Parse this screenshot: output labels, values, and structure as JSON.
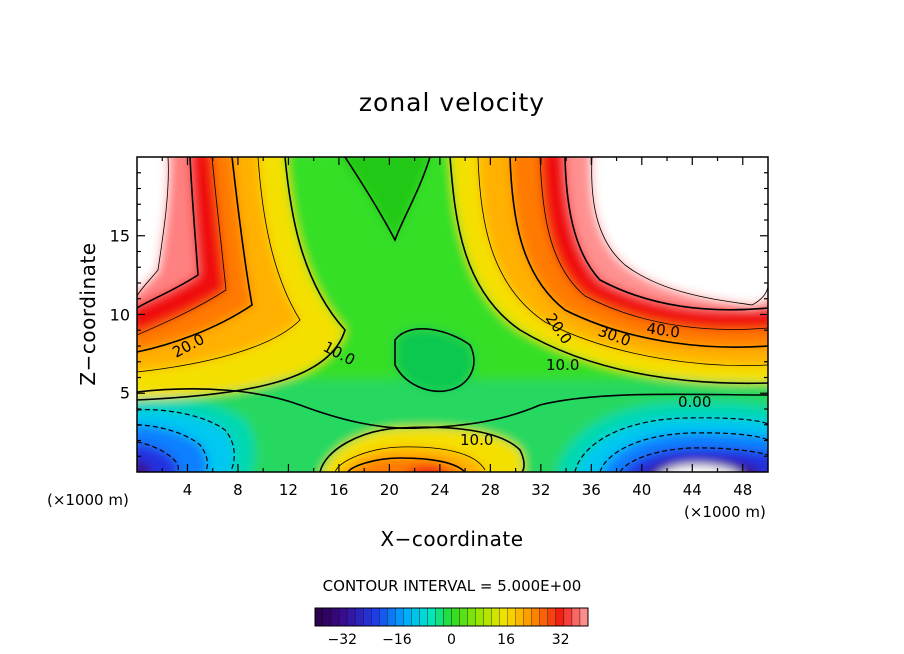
{
  "chart_data": {
    "type": "heatmap",
    "title": "zonal velocity",
    "xlabel": "X−coordinate",
    "ylabel": "Z−coordinate",
    "x_multiplier_left": "(×1000 m)",
    "x_multiplier_right": "(×1000 m)",
    "xlim": [
      0,
      50
    ],
    "ylim": [
      0,
      20
    ],
    "x_ticks": [
      "4",
      "8",
      "12",
      "16",
      "20",
      "24",
      "28",
      "32",
      "36",
      "40",
      "44",
      "48"
    ],
    "y_ticks": [
      "5",
      "10",
      "15"
    ],
    "contour_interval": "CONTOUR INTERVAL = 5.000E+00",
    "contour_labels": [
      "20.0",
      "10.0",
      "20.0",
      "30.0",
      "40.0",
      "10.0",
      "0.00",
      "10.0"
    ],
    "colorbar": {
      "range": [
        -40,
        40
      ],
      "ticks": [
        "−32",
        "−16",
        "0",
        "16",
        "32"
      ]
    },
    "colors": {
      "strong_negative": "#3a0a8c",
      "negative": "#1060ff",
      "weak_negative": "#00d8e0",
      "zero": "#30e020",
      "weak_positive": "#f4e000",
      "positive": "#ff7a00",
      "strong_positive": "#f01010",
      "max_positive": "#ff9090"
    }
  }
}
